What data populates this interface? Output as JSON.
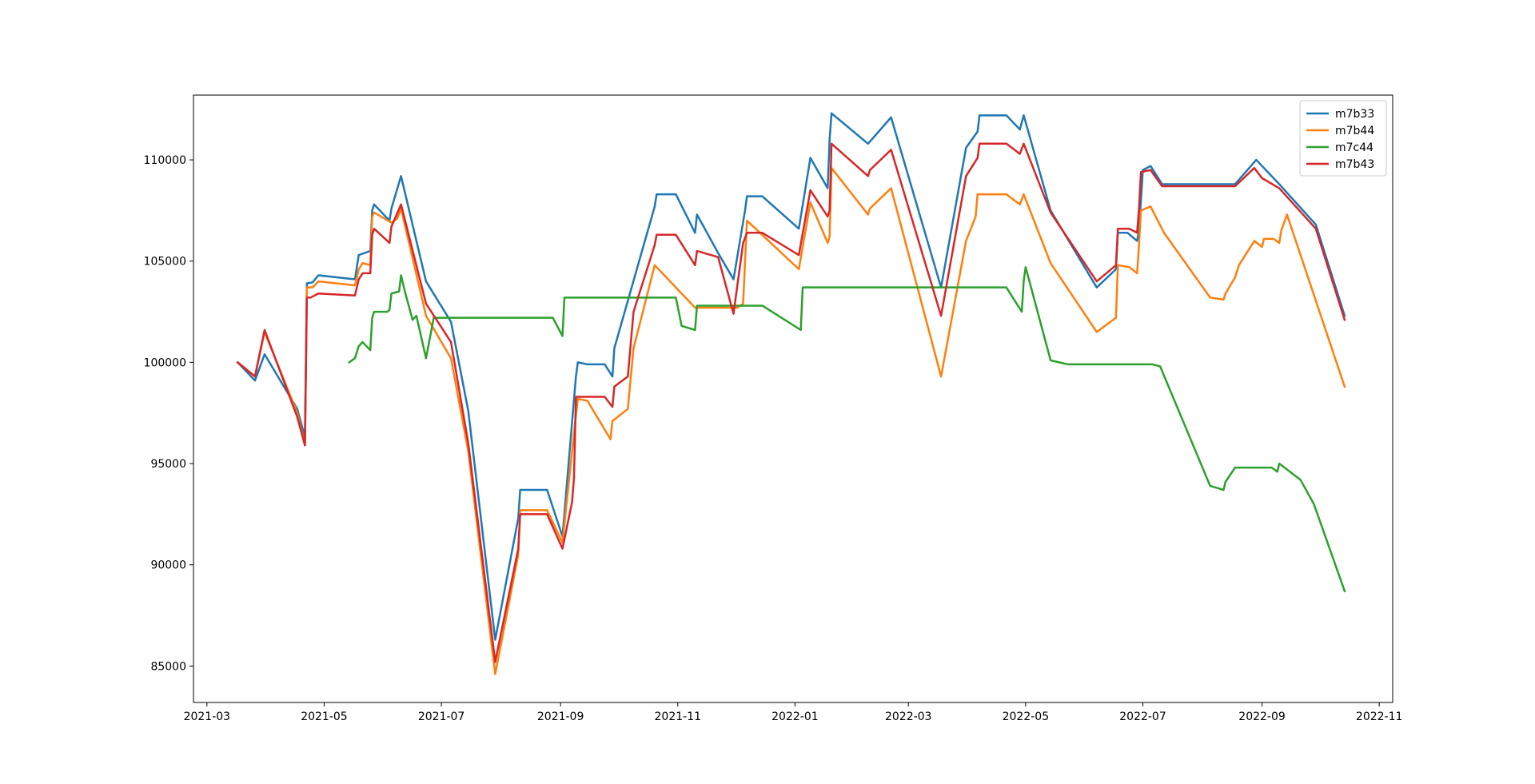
{
  "chart_data": {
    "type": "line",
    "title": "",
    "xlabel": "",
    "ylabel": "",
    "xlim": [
      "2021-02-22",
      "2022-11-08"
    ],
    "ylim": [
      83200,
      113200
    ],
    "x_ticks": [
      "2021-03-01",
      "2021-05-01",
      "2021-07-01",
      "2021-09-01",
      "2021-11-01",
      "2022-01-01",
      "2022-03-01",
      "2022-05-01",
      "2022-07-01",
      "2022-09-01",
      "2022-11-01"
    ],
    "x_tick_labels": [
      "2021-03",
      "2021-05",
      "2021-07",
      "2021-09",
      "2021-11",
      "2022-01",
      "2022-03",
      "2022-05",
      "2022-07",
      "2022-09",
      "2022-11"
    ],
    "y_ticks": [
      85000,
      90000,
      95000,
      100000,
      105000,
      110000
    ],
    "y_tick_labels": [
      "85000",
      "90000",
      "95000",
      "100000",
      "105000",
      "110000"
    ],
    "grid": false,
    "legend_position": "upper-right",
    "series": [
      {
        "name": "m7b33",
        "color": "#1f77b4",
        "points": [
          [
            "2021-03-17",
            100000
          ],
          [
            "2021-03-26",
            99100
          ],
          [
            "2021-03-31",
            100400
          ],
          [
            "2021-04-17",
            97700
          ],
          [
            "2021-04-21",
            96300
          ],
          [
            "2021-04-22",
            103900
          ],
          [
            "2021-04-25",
            103950
          ],
          [
            "2021-04-28",
            104300
          ],
          [
            "2021-05-17",
            104100
          ],
          [
            "2021-05-19",
            105300
          ],
          [
            "2021-05-25",
            105500
          ],
          [
            "2021-05-26",
            107500
          ],
          [
            "2021-05-27",
            107800
          ],
          [
            "2021-06-01",
            107300
          ],
          [
            "2021-06-04",
            107000
          ],
          [
            "2021-06-05",
            107600
          ],
          [
            "2021-06-10",
            109200
          ],
          [
            "2021-06-23",
            104000
          ],
          [
            "2021-07-06",
            102000
          ],
          [
            "2021-07-15",
            97600
          ],
          [
            "2021-07-29",
            86300
          ],
          [
            "2021-08-10",
            92300
          ],
          [
            "2021-08-11",
            93700
          ],
          [
            "2021-08-25",
            93700
          ],
          [
            "2021-09-02",
            91400
          ],
          [
            "2021-09-09",
            99300
          ],
          [
            "2021-09-10",
            100000
          ],
          [
            "2021-09-15",
            99900
          ],
          [
            "2021-09-24",
            99900
          ],
          [
            "2021-09-28",
            99300
          ],
          [
            "2021-09-29",
            100700
          ],
          [
            "2021-10-20",
            107700
          ],
          [
            "2021-10-21",
            108300
          ],
          [
            "2021-10-31",
            108300
          ],
          [
            "2021-11-10",
            106400
          ],
          [
            "2021-11-11",
            107300
          ],
          [
            "2021-11-22",
            105400
          ],
          [
            "2021-11-30",
            104100
          ],
          [
            "2021-12-06",
            107500
          ],
          [
            "2021-12-07",
            108200
          ],
          [
            "2021-12-15",
            108200
          ],
          [
            "2022-01-03",
            106600
          ],
          [
            "2022-01-09",
            110100
          ],
          [
            "2022-01-18",
            108600
          ],
          [
            "2022-01-19",
            111000
          ],
          [
            "2022-01-20",
            112300
          ],
          [
            "2022-02-08",
            110800
          ],
          [
            "2022-02-20",
            112100
          ],
          [
            "2022-03-18",
            103700
          ],
          [
            "2022-03-31",
            110600
          ],
          [
            "2022-04-06",
            111400
          ],
          [
            "2022-04-07",
            112200
          ],
          [
            "2022-04-21",
            112200
          ],
          [
            "2022-04-28",
            111500
          ],
          [
            "2022-04-30",
            112200
          ],
          [
            "2022-05-14",
            107500
          ],
          [
            "2022-06-07",
            103700
          ],
          [
            "2022-06-17",
            104600
          ],
          [
            "2022-06-18",
            106400
          ],
          [
            "2022-06-23",
            106400
          ],
          [
            "2022-06-28",
            106000
          ],
          [
            "2022-06-29",
            106500
          ],
          [
            "2022-07-01",
            109500
          ],
          [
            "2022-07-05",
            109700
          ],
          [
            "2022-07-11",
            108800
          ],
          [
            "2022-08-18",
            108800
          ],
          [
            "2022-08-29",
            110000
          ],
          [
            "2022-09-10",
            108800
          ],
          [
            "2022-09-29",
            106800
          ],
          [
            "2022-10-14",
            102300
          ]
        ]
      },
      {
        "name": "m7b44",
        "color": "#ff7f0e",
        "points": [
          [
            "2021-03-17",
            100000
          ],
          [
            "2021-03-26",
            99300
          ],
          [
            "2021-03-31",
            101500
          ],
          [
            "2021-04-17",
            97500
          ],
          [
            "2021-04-21",
            95900
          ],
          [
            "2021-04-22",
            103700
          ],
          [
            "2021-04-25",
            103700
          ],
          [
            "2021-04-28",
            104000
          ],
          [
            "2021-05-17",
            103800
          ],
          [
            "2021-05-19",
            104600
          ],
          [
            "2021-05-21",
            104900
          ],
          [
            "2021-05-25",
            104800
          ],
          [
            "2021-05-26",
            107200
          ],
          [
            "2021-05-27",
            107400
          ],
          [
            "2021-06-05",
            106900
          ],
          [
            "2021-06-08",
            107100
          ],
          [
            "2021-06-10",
            107600
          ],
          [
            "2021-06-23",
            102300
          ],
          [
            "2021-07-06",
            100200
          ],
          [
            "2021-07-15",
            95600
          ],
          [
            "2021-07-29",
            84600
          ],
          [
            "2021-08-10",
            90500
          ],
          [
            "2021-08-11",
            92700
          ],
          [
            "2021-08-25",
            92700
          ],
          [
            "2021-09-02",
            91100
          ],
          [
            "2021-09-09",
            97400
          ],
          [
            "2021-09-10",
            98200
          ],
          [
            "2021-09-15",
            98100
          ],
          [
            "2021-09-27",
            96200
          ],
          [
            "2021-09-28",
            97100
          ],
          [
            "2021-10-06",
            97700
          ],
          [
            "2021-10-09",
            100700
          ],
          [
            "2021-10-20",
            104800
          ],
          [
            "2021-11-10",
            102700
          ],
          [
            "2021-12-02",
            102700
          ],
          [
            "2021-12-05",
            102900
          ],
          [
            "2021-12-07",
            107000
          ],
          [
            "2022-01-03",
            104600
          ],
          [
            "2022-01-09",
            107900
          ],
          [
            "2022-01-18",
            105900
          ],
          [
            "2022-01-19",
            106200
          ],
          [
            "2022-01-20",
            109600
          ],
          [
            "2022-02-08",
            107300
          ],
          [
            "2022-02-09",
            107600
          ],
          [
            "2022-02-20",
            108600
          ],
          [
            "2022-03-18",
            99300
          ],
          [
            "2022-03-31",
            106000
          ],
          [
            "2022-04-05",
            107200
          ],
          [
            "2022-04-06",
            108300
          ],
          [
            "2022-04-21",
            108300
          ],
          [
            "2022-04-28",
            107800
          ],
          [
            "2022-04-30",
            108300
          ],
          [
            "2022-05-14",
            104900
          ],
          [
            "2022-06-07",
            101500
          ],
          [
            "2022-06-17",
            102200
          ],
          [
            "2022-06-18",
            104800
          ],
          [
            "2022-06-24",
            104700
          ],
          [
            "2022-06-28",
            104400
          ],
          [
            "2022-06-29",
            105800
          ],
          [
            "2022-06-30",
            107500
          ],
          [
            "2022-07-05",
            107700
          ],
          [
            "2022-07-12",
            106400
          ],
          [
            "2022-08-05",
            103200
          ],
          [
            "2022-08-12",
            103100
          ],
          [
            "2022-08-13",
            103400
          ],
          [
            "2022-08-18",
            104200
          ],
          [
            "2022-08-20",
            104800
          ],
          [
            "2022-08-28",
            106000
          ],
          [
            "2022-09-01",
            105700
          ],
          [
            "2022-09-02",
            106100
          ],
          [
            "2022-09-07",
            106100
          ],
          [
            "2022-09-10",
            105900
          ],
          [
            "2022-09-11",
            106500
          ],
          [
            "2022-09-14",
            107300
          ],
          [
            "2022-10-14",
            98800
          ]
        ]
      },
      {
        "name": "m7c44",
        "color": "#2ca02c",
        "points": [
          [
            "2021-05-14",
            100000
          ],
          [
            "2021-05-17",
            100200
          ],
          [
            "2021-05-19",
            100800
          ],
          [
            "2021-05-21",
            101000
          ],
          [
            "2021-05-25",
            100600
          ],
          [
            "2021-05-26",
            102200
          ],
          [
            "2021-05-27",
            102500
          ],
          [
            "2021-06-03",
            102500
          ],
          [
            "2021-06-04",
            102600
          ],
          [
            "2021-06-05",
            103400
          ],
          [
            "2021-06-09",
            103500
          ],
          [
            "2021-06-10",
            104300
          ],
          [
            "2021-06-12",
            103500
          ],
          [
            "2021-06-16",
            102100
          ],
          [
            "2021-06-18",
            102300
          ],
          [
            "2021-06-23",
            100200
          ],
          [
            "2021-06-27",
            102200
          ],
          [
            "2021-07-06",
            102200
          ],
          [
            "2021-07-07",
            102200
          ],
          [
            "2021-08-28",
            102200
          ],
          [
            "2021-09-02",
            101300
          ],
          [
            "2021-09-03",
            103200
          ],
          [
            "2021-10-31",
            103200
          ],
          [
            "2021-11-03",
            101800
          ],
          [
            "2021-11-10",
            101600
          ],
          [
            "2021-11-11",
            102800
          ],
          [
            "2021-12-15",
            102800
          ],
          [
            "2022-01-04",
            101600
          ],
          [
            "2022-01-05",
            103700
          ],
          [
            "2022-04-21",
            103700
          ],
          [
            "2022-04-29",
            102500
          ],
          [
            "2022-04-30",
            104000
          ],
          [
            "2022-05-01",
            104700
          ],
          [
            "2022-05-14",
            100100
          ],
          [
            "2022-05-23",
            99900
          ],
          [
            "2022-07-06",
            99900
          ],
          [
            "2022-07-10",
            99800
          ],
          [
            "2022-08-05",
            93900
          ],
          [
            "2022-08-12",
            93700
          ],
          [
            "2022-08-13",
            94100
          ],
          [
            "2022-08-18",
            94800
          ],
          [
            "2022-09-06",
            94800
          ],
          [
            "2022-09-09",
            94600
          ],
          [
            "2022-09-10",
            95000
          ],
          [
            "2022-09-21",
            94200
          ],
          [
            "2022-09-28",
            93000
          ],
          [
            "2022-10-14",
            88700
          ]
        ]
      },
      {
        "name": "m7b43",
        "color": "#d62728",
        "points": [
          [
            "2021-03-17",
            100000
          ],
          [
            "2021-03-26",
            99300
          ],
          [
            "2021-03-31",
            101600
          ],
          [
            "2021-04-17",
            97300
          ],
          [
            "2021-04-21",
            95900
          ],
          [
            "2021-04-22",
            103200
          ],
          [
            "2021-04-24",
            103200
          ],
          [
            "2021-04-28",
            103400
          ],
          [
            "2021-05-17",
            103300
          ],
          [
            "2021-05-19",
            104100
          ],
          [
            "2021-05-21",
            104400
          ],
          [
            "2021-05-25",
            104400
          ],
          [
            "2021-05-26",
            106300
          ],
          [
            "2021-05-27",
            106600
          ],
          [
            "2021-06-04",
            105900
          ],
          [
            "2021-06-05",
            106700
          ],
          [
            "2021-06-10",
            107800
          ],
          [
            "2021-06-23",
            102900
          ],
          [
            "2021-07-06",
            101000
          ],
          [
            "2021-07-15",
            96000
          ],
          [
            "2021-07-29",
            85200
          ],
          [
            "2021-08-10",
            90800
          ],
          [
            "2021-08-11",
            92500
          ],
          [
            "2021-08-25",
            92500
          ],
          [
            "2021-09-02",
            90800
          ],
          [
            "2021-09-07",
            93100
          ],
          [
            "2021-09-08",
            94300
          ],
          [
            "2021-09-09",
            98300
          ],
          [
            "2021-09-15",
            98300
          ],
          [
            "2021-09-24",
            98300
          ],
          [
            "2021-09-28",
            97800
          ],
          [
            "2021-09-29",
            98800
          ],
          [
            "2021-10-06",
            99300
          ],
          [
            "2021-10-09",
            102500
          ],
          [
            "2021-10-20",
            105800
          ],
          [
            "2021-10-21",
            106300
          ],
          [
            "2021-10-31",
            106300
          ],
          [
            "2021-11-10",
            104800
          ],
          [
            "2021-11-11",
            105500
          ],
          [
            "2021-11-22",
            105200
          ],
          [
            "2021-11-30",
            102400
          ],
          [
            "2021-12-05",
            105900
          ],
          [
            "2021-12-07",
            106400
          ],
          [
            "2021-12-15",
            106400
          ],
          [
            "2022-01-03",
            105300
          ],
          [
            "2022-01-09",
            108500
          ],
          [
            "2022-01-18",
            107200
          ],
          [
            "2022-01-19",
            107500
          ],
          [
            "2022-01-20",
            110800
          ],
          [
            "2022-02-08",
            109200
          ],
          [
            "2022-02-09",
            109500
          ],
          [
            "2022-02-20",
            110500
          ],
          [
            "2022-03-18",
            102300
          ],
          [
            "2022-03-31",
            109200
          ],
          [
            "2022-04-06",
            110100
          ],
          [
            "2022-04-07",
            110800
          ],
          [
            "2022-04-21",
            110800
          ],
          [
            "2022-04-28",
            110300
          ],
          [
            "2022-04-30",
            110800
          ],
          [
            "2022-05-14",
            107400
          ],
          [
            "2022-06-07",
            104000
          ],
          [
            "2022-06-17",
            104800
          ],
          [
            "2022-06-18",
            106600
          ],
          [
            "2022-06-24",
            106600
          ],
          [
            "2022-06-28",
            106400
          ],
          [
            "2022-06-29",
            107600
          ],
          [
            "2022-06-30",
            109400
          ],
          [
            "2022-07-05",
            109500
          ],
          [
            "2022-07-11",
            108700
          ],
          [
            "2022-08-18",
            108700
          ],
          [
            "2022-08-28",
            109600
          ],
          [
            "2022-09-01",
            109100
          ],
          [
            "2022-09-10",
            108600
          ],
          [
            "2022-09-29",
            106600
          ],
          [
            "2022-10-14",
            102100
          ]
        ]
      }
    ]
  }
}
